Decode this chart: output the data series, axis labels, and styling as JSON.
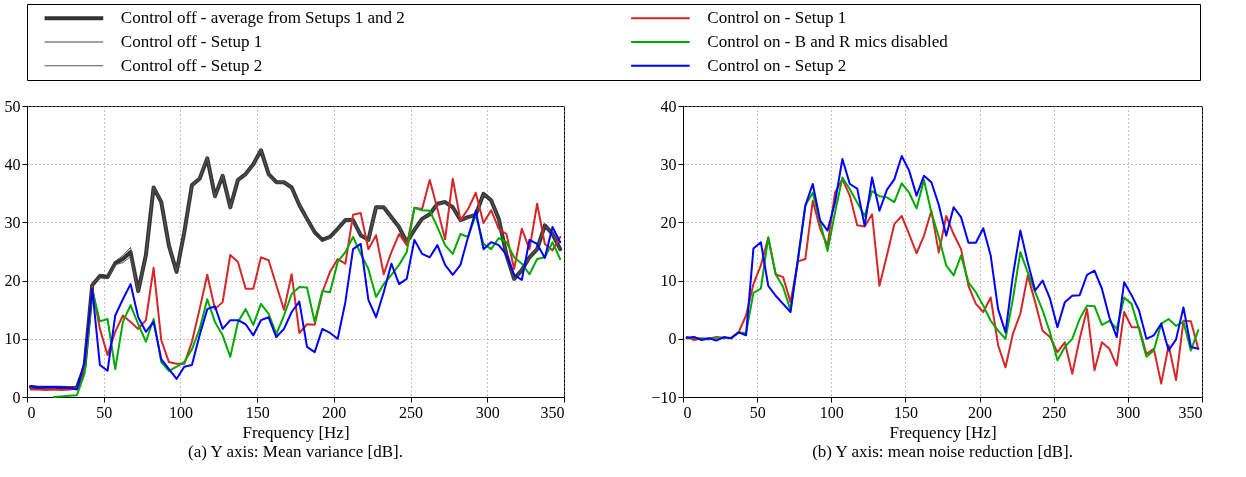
{
  "chart_data": [
    {
      "type": "line",
      "xlabel": "Frequency [Hz]",
      "annotations": [
        "(a) Y axis: Mean variance [dB]."
      ],
      "legend": "top",
      "grid": true,
      "xlim": [
        0,
        350
      ],
      "xticks": [
        0,
        50,
        100,
        150,
        200,
        250,
        300,
        350
      ],
      "ylim": [
        0,
        50
      ],
      "yticks": [
        0,
        10,
        20,
        30,
        40,
        50
      ],
      "x": [
        2.5,
        7.5,
        12.5,
        17.5,
        22.5,
        27.5,
        32.5,
        37.5,
        42.5,
        47.5,
        52.5,
        57.5,
        62.5,
        67.5,
        72.5,
        77.5,
        82.5,
        87.5,
        92.5,
        97.5,
        102.5,
        107.5,
        112.5,
        117.5,
        122.5,
        127.5,
        132.5,
        137.5,
        142.5,
        147.5,
        152.5,
        157.5,
        162.5,
        167.5,
        172.5,
        177.5,
        182.5,
        187.5,
        192.5,
        197.5,
        202.5,
        207.5,
        212.5,
        217.5,
        222.5,
        227.5,
        232.5,
        237.5,
        242.5,
        247.5,
        252.5,
        257.5,
        262.5,
        267.5,
        272.5,
        277.5,
        282.5,
        287.5,
        292.5,
        297.5,
        302.5,
        307.5,
        312.5,
        317.5,
        322.5,
        327.5,
        332.5,
        337.5,
        342.5,
        347.5
      ],
      "series": [
        {
          "name": "Control off - average from Setups 1 and 2",
          "color": "#333333",
          "values": [
            1.7,
            1.6,
            1.6,
            1.6,
            1.6,
            1.5,
            1.6,
            5.2,
            19.2,
            20.8,
            20.6,
            23,
            23.7,
            24.9,
            18.2,
            24.4,
            36,
            33.5,
            26,
            21.5,
            28.3,
            36.4,
            37.5,
            41,
            34.5,
            38,
            32.6,
            37.3,
            38.3,
            40,
            42.4,
            38.3,
            36.9,
            36.9,
            36,
            33,
            30.6,
            28.3,
            27,
            27.5,
            28.9,
            30.4,
            30.4,
            27.8,
            27,
            32.6,
            32.6,
            30.9,
            29.2,
            26.6,
            28.7,
            30.6,
            31.4,
            33.2,
            33.5,
            32.6,
            30.4,
            30.9,
            31.3,
            34.9,
            33.8,
            30.6,
            24.4,
            20.3,
            21.8,
            24,
            25.4,
            29.5,
            28,
            25.4
          ]
        },
        {
          "name": "Control off - Setup 1",
          "color": "#444444",
          "values": [
            1.8,
            1.6,
            1.7,
            1.6,
            1.7,
            1.5,
            1.7,
            5.4,
            19,
            21.1,
            20.9,
            23.3,
            24.3,
            25.7,
            18.4,
            24.6,
            35.8,
            33.2,
            25.8,
            21.3,
            28.5,
            36.6,
            37.3,
            40.8,
            34.7,
            37.8,
            32.8,
            37.1,
            38.5,
            40.2,
            42.2,
            38.5,
            37.1,
            36.7,
            36.2,
            32.8,
            30.8,
            28.6,
            27.3,
            27.7,
            29.1,
            30.2,
            30.6,
            27.6,
            27.2,
            32.8,
            32.4,
            31.1,
            29,
            26.8,
            28.5,
            30.8,
            31.2,
            33.4,
            33.3,
            32.8,
            30.2,
            31.1,
            31.1,
            35.1,
            33.6,
            30.8,
            24.2,
            20.5,
            21.6,
            24.2,
            25.2,
            29.7,
            27.8,
            25.6
          ]
        },
        {
          "name": "Control off - Setup 2",
          "color": "#555555",
          "values": [
            1.6,
            1.6,
            1.5,
            1.6,
            1.5,
            1.5,
            1.5,
            5,
            19.4,
            20.5,
            20.3,
            22.7,
            23.1,
            24.1,
            18,
            24.2,
            36.2,
            33.8,
            26.2,
            21.7,
            28.1,
            36.2,
            37.7,
            41.2,
            34.3,
            38.2,
            32.4,
            37.5,
            38.1,
            39.8,
            42.6,
            38.1,
            36.7,
            37.1,
            35.8,
            33.2,
            30.4,
            28,
            26.7,
            27.3,
            28.7,
            30.6,
            30.2,
            28,
            26.8,
            32.4,
            32.8,
            30.7,
            29.4,
            26.4,
            28.9,
            30.4,
            31.6,
            33,
            33.7,
            32.4,
            30.6,
            30.7,
            31.5,
            34.7,
            34,
            30.4,
            24.6,
            20.1,
            22,
            23.8,
            25.6,
            29.3,
            28.2,
            25.2
          ]
        },
        {
          "name": "Control on - Setup 1",
          "color": "#d62728",
          "values": [
            1.3,
            1.3,
            1.2,
            1.3,
            1.2,
            1.3,
            1.5,
            5,
            18.9,
            11.7,
            7.2,
            11.2,
            14,
            12.9,
            11.7,
            13.2,
            22.2,
            9.8,
            6,
            5.7,
            5.7,
            9.5,
            15.1,
            21,
            15.1,
            16.3,
            24.4,
            23.2,
            18.6,
            18.6,
            24,
            23.5,
            19.2,
            15,
            21.1,
            11,
            12.5,
            12.4,
            18,
            21.5,
            23.7,
            22.9,
            31.3,
            31.6,
            25.4,
            27.8,
            21.1,
            24.9,
            28,
            26.1,
            32.5,
            32.3,
            37.3,
            32.3,
            27.1,
            37.5,
            30.4,
            32.3,
            35.1,
            29.9,
            32.1,
            28.9,
            28,
            22,
            28.9,
            25.4,
            33.2,
            26.3,
            25.2,
            27.5
          ]
        },
        {
          "name": "Control on - B and R mics disabled",
          "color": "#00aa00",
          "values": [
            null,
            null,
            null,
            0,
            0.1,
            0.2,
            0.3,
            4,
            18.4,
            13,
            13.4,
            4.8,
            12.9,
            15.8,
            12.5,
            9.5,
            13.4,
            6,
            4.5,
            5.2,
            6,
            8.2,
            11.7,
            16.8,
            12.9,
            10.6,
            6.9,
            12.9,
            15.1,
            12.4,
            16,
            14.3,
            10.8,
            14,
            17.7,
            18.9,
            18.8,
            12.9,
            18.2,
            18,
            23.2,
            24.9,
            27.5,
            24.6,
            22,
            17.2,
            19.4,
            21,
            22.7,
            24.9,
            32.5,
            32.1,
            32,
            29.2,
            26.1,
            24.6,
            28,
            27.5,
            31.3,
            26.3,
            25.4,
            27.3,
            26.6,
            24,
            22.9,
            21.1,
            23.7,
            24,
            26.6,
            23.7
          ]
        },
        {
          "name": "Control on - Setup 2",
          "color": "#0000ff",
          "values": [
            1.9,
            1.6,
            1.7,
            1.7,
            1.6,
            1.6,
            1.3,
            6,
            18.6,
            5.5,
            4.5,
            14,
            16.8,
            19.4,
            13.7,
            11.2,
            12.9,
            6.5,
            4.8,
            3.1,
            5.2,
            5.5,
            10.6,
            15.1,
            15.6,
            11.7,
            13.2,
            13.2,
            12.5,
            10.6,
            13.2,
            13.7,
            10.3,
            11.7,
            14.6,
            16.4,
            8.6,
            7.7,
            11.7,
            11,
            10,
            16.3,
            25.4,
            26.3,
            16.7,
            13.7,
            18,
            22.9,
            19.4,
            20.3,
            27,
            24.6,
            24,
            26.1,
            22.7,
            21,
            22.7,
            27.5,
            32,
            25.4,
            26.6,
            26.1,
            24.4,
            21,
            20.1,
            27,
            26.3,
            23.9,
            29.2,
            26.6
          ]
        }
      ]
    },
    {
      "type": "line",
      "xlabel": "Frequency [Hz]",
      "annotations": [
        "(b) Y axis: mean noise reduction [dB]."
      ],
      "grid": true,
      "xlim": [
        0,
        350
      ],
      "xticks": [
        0,
        50,
        100,
        150,
        200,
        250,
        300,
        350
      ],
      "ylim": [
        -10,
        40
      ],
      "yticks": [
        -10,
        0,
        10,
        20,
        30,
        40
      ],
      "x": [
        2.5,
        7.5,
        12.5,
        17.5,
        22.5,
        27.5,
        32.5,
        37.5,
        42.5,
        47.5,
        52.5,
        57.5,
        62.5,
        67.5,
        72.5,
        77.5,
        82.5,
        87.5,
        92.5,
        97.5,
        102.5,
        107.5,
        112.5,
        117.5,
        122.5,
        127.5,
        132.5,
        137.5,
        142.5,
        147.5,
        152.5,
        157.5,
        162.5,
        167.5,
        172.5,
        177.5,
        182.5,
        187.5,
        192.5,
        197.5,
        202.5,
        207.5,
        212.5,
        217.5,
        222.5,
        227.5,
        232.5,
        237.5,
        242.5,
        247.5,
        252.5,
        257.5,
        262.5,
        267.5,
        272.5,
        277.5,
        282.5,
        287.5,
        292.5,
        297.5,
        302.5,
        307.5,
        312.5,
        317.5,
        322.5,
        327.5,
        332.5,
        337.5,
        342.5,
        347.5
      ],
      "series": [
        {
          "color": "#d62728",
          "values": [
            0.3,
            -0.2,
            0.1,
            0,
            0.3,
            0.2,
            0.1,
            1.1,
            4,
            9.4,
            12.6,
            17.4,
            11.1,
            10.6,
            6.3,
            13.3,
            13.7,
            23.7,
            18.9,
            16,
            25.1,
            27.4,
            24.6,
            19.5,
            19.3,
            21.4,
            9.1,
            14.3,
            19.7,
            21.1,
            18,
            14.7,
            17.7,
            22,
            14.8,
            21.1,
            18,
            15.4,
            9.1,
            6,
            4.6,
            7.1,
            -1.1,
            -4.9,
            0.9,
            4.3,
            10.9,
            6.3,
            1.4,
            0.3,
            -2.3,
            -0.6,
            -6,
            0,
            5.1,
            -5.4,
            -0.6,
            -1.7,
            -4.6,
            4.6,
            2,
            2,
            -2.6,
            -1.7,
            -7.7,
            -1.1,
            -7.1,
            3.1,
            3,
            -1.7
          ]
        },
        {
          "color": "#00aa00",
          "values": [
            0.1,
            0.2,
            0,
            -0.1,
            0.2,
            0.1,
            0.2,
            1.1,
            1,
            7.9,
            8.6,
            17.4,
            11.1,
            8.9,
            4.9,
            13.4,
            22.9,
            25.1,
            20,
            15.1,
            21.7,
            27.7,
            25.7,
            23.4,
            21.1,
            25.4,
            24.5,
            24.3,
            23.5,
            26.7,
            25.1,
            22.4,
            27.3,
            21.7,
            17.5,
            12.6,
            10.9,
            14.3,
            9.7,
            8,
            5.7,
            3.1,
            1.4,
            0,
            6.9,
            14.9,
            11.4,
            8,
            4.9,
            1.1,
            -3.7,
            -1.4,
            0,
            3.4,
            5.7,
            5.6,
            2.4,
            3.1,
            1.7,
            7.1,
            6,
            1.7,
            -3.1,
            -2,
            2.6,
            3.4,
            2.2,
            2.9,
            -2,
            1.5
          ]
        },
        {
          "color": "#0000ff",
          "values": [
            0.2,
            0.3,
            -0.2,
            0.1,
            -0.3,
            0.3,
            0.1,
            1.1,
            0.6,
            15.5,
            16.6,
            9.1,
            7.4,
            6,
            4.6,
            13.7,
            22.9,
            26.6,
            20.3,
            18.6,
            23.4,
            30.9,
            26.6,
            25.8,
            19.4,
            27.7,
            22,
            25.6,
            27.4,
            31.4,
            28.9,
            24.6,
            28,
            26.9,
            23,
            17.7,
            22.6,
            20.9,
            16.5,
            16.5,
            19,
            14.3,
            5.1,
            1.1,
            10.9,
            18.6,
            13.1,
            8.3,
            10,
            6.9,
            2,
            6.3,
            7.4,
            7.5,
            11,
            11.7,
            8.6,
            3.7,
            0.3,
            9.7,
            7.5,
            4.9,
            0,
            0.6,
            2.6,
            -2,
            -0.1,
            5.4,
            -1.4,
            -1.7
          ]
        }
      ]
    }
  ]
}
